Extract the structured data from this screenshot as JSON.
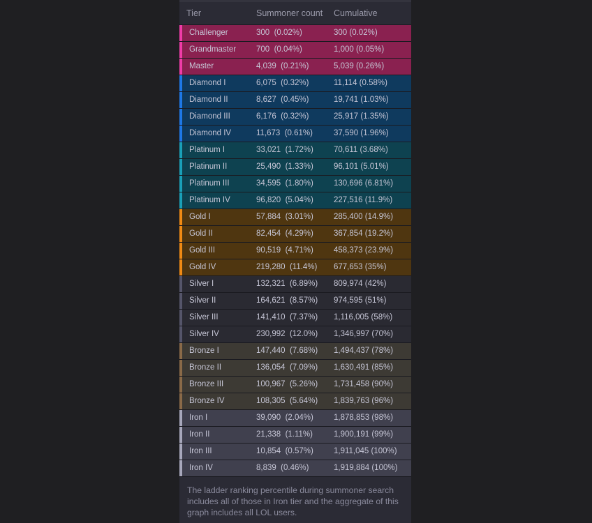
{
  "table": {
    "headers": {
      "tier": "Tier",
      "count": "Summoner count",
      "cumulative": "Cumulative"
    },
    "rows": [
      {
        "tier": "Challenger",
        "count": "300  (0.02%)",
        "cumulative": "300 (0.02%)",
        "bg": "#8a2150",
        "bar": "#f03ca8"
      },
      {
        "tier": "Grandmaster",
        "count": "700  (0.04%)",
        "cumulative": "1,000 (0.05%)",
        "bg": "#8a2150",
        "bar": "#f03ca8"
      },
      {
        "tier": "Master",
        "count": "4,039  (0.21%)",
        "cumulative": "5,039 (0.26%)",
        "bg": "#8a2150",
        "bar": "#f03ca8"
      },
      {
        "tier": "Diamond I",
        "count": "6,075  (0.32%)",
        "cumulative": "11,114 (0.58%)",
        "bg": "#0f3a5e",
        "bar": "#1e78e6"
      },
      {
        "tier": "Diamond II",
        "count": "8,627  (0.45%)",
        "cumulative": "19,741 (1.03%)",
        "bg": "#0f3a5e",
        "bar": "#1e78e6"
      },
      {
        "tier": "Diamond III",
        "count": "6,176  (0.32%)",
        "cumulative": "25,917 (1.35%)",
        "bg": "#0f3a5e",
        "bar": "#1e78e6"
      },
      {
        "tier": "Diamond IV",
        "count": "11,673  (0.61%)",
        "cumulative": "37,590 (1.96%)",
        "bg": "#0f3a5e",
        "bar": "#1e78e6"
      },
      {
        "tier": "Platinum I",
        "count": "33,021  (1.72%)",
        "cumulative": "70,611 (3.68%)",
        "bg": "#0e4250",
        "bar": "#1aa0b8"
      },
      {
        "tier": "Platinum II",
        "count": "25,490  (1.33%)",
        "cumulative": "96,101 (5.01%)",
        "bg": "#0e4250",
        "bar": "#1aa0b8"
      },
      {
        "tier": "Platinum III",
        "count": "34,595  (1.80%)",
        "cumulative": "130,696 (6.81%)",
        "bg": "#0e4250",
        "bar": "#1aa0b8"
      },
      {
        "tier": "Platinum IV",
        "count": "96,820  (5.04%)",
        "cumulative": "227,516 (11.9%)",
        "bg": "#0e4250",
        "bar": "#1aa0b8"
      },
      {
        "tier": "Gold I",
        "count": "57,884  (3.01%)",
        "cumulative": "285,400 (14.9%)",
        "bg": "#4f3610",
        "bar": "#f08a14"
      },
      {
        "tier": "Gold II",
        "count": "82,454  (4.29%)",
        "cumulative": "367,854 (19.2%)",
        "bg": "#4f3610",
        "bar": "#f08a14"
      },
      {
        "tier": "Gold III",
        "count": "90,519  (4.71%)",
        "cumulative": "458,373 (23.9%)",
        "bg": "#4f3610",
        "bar": "#f08a14"
      },
      {
        "tier": "Gold IV",
        "count": "219,280  (11.4%)",
        "cumulative": "677,653 (35%)",
        "bg": "#4f3610",
        "bar": "#f08a14"
      },
      {
        "tier": "Silver I",
        "count": "132,321  (6.89%)",
        "cumulative": "809,974 (42%)",
        "bg": "#2a2a32",
        "bar": "#55556a"
      },
      {
        "tier": "Silver II",
        "count": "164,621  (8.57%)",
        "cumulative": "974,595 (51%)",
        "bg": "#2a2a32",
        "bar": "#55556a"
      },
      {
        "tier": "Silver III",
        "count": "141,410  (7.37%)",
        "cumulative": "1,116,005 (58%)",
        "bg": "#2a2a32",
        "bar": "#55556a"
      },
      {
        "tier": "Silver IV",
        "count": "230,992  (12.0%)",
        "cumulative": "1,346,997 (70%)",
        "bg": "#2a2a32",
        "bar": "#55556a"
      },
      {
        "tier": "Bronze I",
        "count": "147,440  (7.68%)",
        "cumulative": "1,494,437 (78%)",
        "bg": "#3d3a34",
        "bar": "#8a6a48"
      },
      {
        "tier": "Bronze II",
        "count": "136,054  (7.09%)",
        "cumulative": "1,630,491 (85%)",
        "bg": "#3d3a34",
        "bar": "#8a6a48"
      },
      {
        "tier": "Bronze III",
        "count": "100,967  (5.26%)",
        "cumulative": "1,731,458 (90%)",
        "bg": "#3d3a34",
        "bar": "#8a6a48"
      },
      {
        "tier": "Bronze IV",
        "count": "108,305  (5.64%)",
        "cumulative": "1,839,763 (96%)",
        "bg": "#3d3a34",
        "bar": "#8a6a48"
      },
      {
        "tier": "Iron I",
        "count": "39,090  (2.04%)",
        "cumulative": "1,878,853 (98%)",
        "bg": "#40404e",
        "bar": "#a8a8bc"
      },
      {
        "tier": "Iron II",
        "count": "21,338  (1.11%)",
        "cumulative": "1,900,191 (99%)",
        "bg": "#40404e",
        "bar": "#a8a8bc"
      },
      {
        "tier": "Iron III",
        "count": "10,854  (0.57%)",
        "cumulative": "1,911,045 (100%)",
        "bg": "#40404e",
        "bar": "#a8a8bc"
      },
      {
        "tier": "Iron IV",
        "count": "8,839  (0.46%)",
        "cumulative": "1,919,884 (100%)",
        "bg": "#40404e",
        "bar": "#a8a8bc"
      }
    ]
  },
  "footnote": "The ladder ranking percentile during summoner search includes all of those in Iron tier and the aggregate of this graph includes all LOL users."
}
